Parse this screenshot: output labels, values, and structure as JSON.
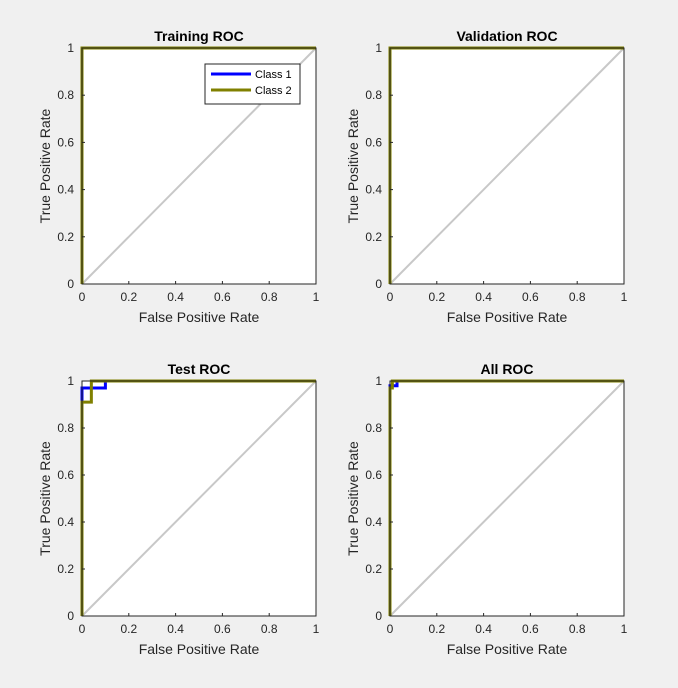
{
  "figure": {
    "background": "#f0f0f0"
  },
  "chart_data": [
    {
      "type": "line",
      "title": "Training ROC",
      "xlabel": "False Positive Rate",
      "ylabel": "True Positive Rate",
      "xlim": [
        0,
        1
      ],
      "ylim": [
        0,
        1
      ],
      "xticks": [
        "0",
        "0.2",
        "0.4",
        "0.6",
        "0.8",
        "1"
      ],
      "yticks": [
        "0",
        "0.2",
        "0.4",
        "0.6",
        "0.8",
        "1"
      ],
      "grid": false,
      "legend": {
        "show": true,
        "placement": "top-right"
      },
      "series": [
        {
          "name": "Class 1",
          "color": "#0000ff",
          "x": [
            0,
            0,
            1
          ],
          "y": [
            0,
            1,
            1
          ]
        },
        {
          "name": "Class 2",
          "color": "#808000",
          "x": [
            0,
            0,
            1
          ],
          "y": [
            0,
            1,
            1
          ]
        },
        {
          "color": "#c8c8c8",
          "x": [
            0,
            1
          ],
          "y": [
            0,
            1
          ]
        }
      ]
    },
    {
      "type": "line",
      "title": "Validation ROC",
      "xlabel": "False Positive Rate",
      "ylabel": "True Positive Rate",
      "xlim": [
        0,
        1
      ],
      "ylim": [
        0,
        1
      ],
      "xticks": [
        "0",
        "0.2",
        "0.4",
        "0.6",
        "0.8",
        "1"
      ],
      "yticks": [
        "0",
        "0.2",
        "0.4",
        "0.6",
        "0.8",
        "1"
      ],
      "grid": false,
      "legend": {
        "show": false
      },
      "series": [
        {
          "name": "Class 1",
          "color": "#0000ff",
          "x": [
            0,
            0,
            1
          ],
          "y": [
            0,
            1,
            1
          ]
        },
        {
          "name": "Class 2",
          "color": "#808000",
          "x": [
            0,
            0,
            1
          ],
          "y": [
            0,
            1,
            1
          ]
        },
        {
          "color": "#c8c8c8",
          "x": [
            0,
            1
          ],
          "y": [
            0,
            1
          ]
        }
      ]
    },
    {
      "type": "line",
      "title": "Test ROC",
      "xlabel": "False Positive Rate",
      "ylabel": "True Positive Rate",
      "xlim": [
        0,
        1
      ],
      "ylim": [
        0,
        1
      ],
      "xticks": [
        "0",
        "0.2",
        "0.4",
        "0.6",
        "0.8",
        "1"
      ],
      "yticks": [
        "0",
        "0.2",
        "0.4",
        "0.6",
        "0.8",
        "1"
      ],
      "grid": false,
      "legend": {
        "show": false
      },
      "series": [
        {
          "name": "Class 1",
          "color": "#0000ff",
          "x": [
            0,
            0,
            0.1,
            0.1,
            1
          ],
          "y": [
            0,
            0.97,
            0.97,
            1,
            1
          ]
        },
        {
          "name": "Class 2",
          "color": "#808000",
          "x": [
            0,
            0,
            0.04,
            0.04,
            1
          ],
          "y": [
            0,
            0.91,
            0.91,
            1,
            1
          ]
        },
        {
          "color": "#c8c8c8",
          "x": [
            0,
            1
          ],
          "y": [
            0,
            1
          ]
        }
      ]
    },
    {
      "type": "line",
      "title": "All ROC",
      "xlabel": "False Positive Rate",
      "ylabel": "True Positive Rate",
      "xlim": [
        0,
        1
      ],
      "ylim": [
        0,
        1
      ],
      "xticks": [
        "0",
        "0.2",
        "0.4",
        "0.6",
        "0.8",
        "1"
      ],
      "yticks": [
        "0",
        "0.2",
        "0.4",
        "0.6",
        "0.8",
        "1"
      ],
      "grid": false,
      "legend": {
        "show": false
      },
      "series": [
        {
          "name": "Class 1",
          "color": "#0000ff",
          "x": [
            0,
            0,
            0.03,
            0.03,
            1
          ],
          "y": [
            0,
            0.98,
            0.98,
            1,
            1
          ]
        },
        {
          "name": "Class 2",
          "color": "#808000",
          "x": [
            0,
            0,
            0.01,
            0.01,
            1
          ],
          "y": [
            0,
            0.97,
            0.97,
            1,
            1
          ]
        },
        {
          "color": "#c8c8c8",
          "x": [
            0,
            1
          ],
          "y": [
            0,
            1
          ]
        }
      ]
    }
  ]
}
